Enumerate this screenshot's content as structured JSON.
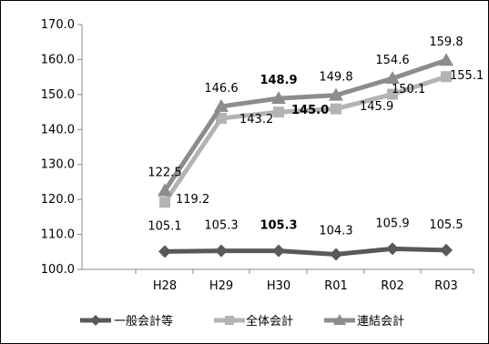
{
  "chart_data": {
    "type": "line",
    "categories": [
      "H28",
      "H29",
      "H30",
      "R01",
      "R02",
      "R03"
    ],
    "ylim": [
      100.0,
      170.0
    ],
    "yticks": [
      "100.0",
      "110.0",
      "120.0",
      "130.0",
      "140.0",
      "150.0",
      "160.0",
      "170.0"
    ],
    "grid": false,
    "legend_position": "bottom",
    "series": [
      {
        "name": "一般会計等",
        "color": "#595959",
        "marker": "diamond",
        "values": [
          105.1,
          105.3,
          105.3,
          104.3,
          105.9,
          105.5
        ],
        "labels": [
          "105.1",
          "105.3",
          "105.3",
          "104.3",
          "105.9",
          "105.5"
        ],
        "bold_index": 2
      },
      {
        "name": "全体会計",
        "color": "#b3b3b3",
        "marker": "square",
        "values": [
          119.2,
          143.2,
          145.0,
          145.9,
          150.1,
          155.1
        ],
        "labels": [
          "119.2",
          "143.2",
          "145.0",
          "145.9",
          "150.1",
          "155.1"
        ],
        "bold_index": 2
      },
      {
        "name": "連結会計",
        "color": "#8c8c8c",
        "marker": "triangle",
        "values": [
          122.5,
          146.6,
          148.9,
          149.8,
          154.6,
          159.8
        ],
        "labels": [
          "122.5",
          "146.6",
          "148.9",
          "149.8",
          "154.6",
          "159.8"
        ],
        "bold_index": 2
      }
    ]
  }
}
